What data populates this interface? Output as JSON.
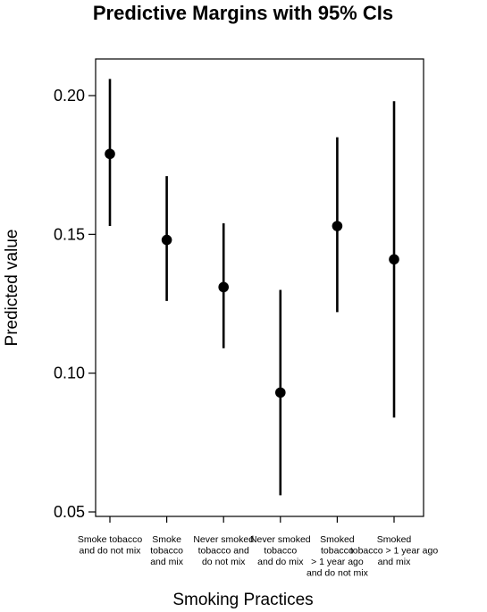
{
  "chart_data": {
    "type": "scatter",
    "title": "Predictive Margins with 95% CIs",
    "xlabel": "Smoking Practices",
    "ylabel": "Predicted value",
    "ylim": [
      0.05,
      0.215
    ],
    "yticks": [
      0.05,
      0.1,
      0.15,
      0.2
    ],
    "ytick_labels": [
      "0.05",
      "0.10",
      "0.15",
      "0.20"
    ],
    "categories": [
      [
        "Smoke tobacco",
        "and do not mix"
      ],
      [
        "Smoke",
        "tobacco",
        "and mix"
      ],
      [
        "Never smoked",
        "tobacco and",
        "do not mix"
      ],
      [
        "Never smoked",
        "tobacco",
        "and do mix"
      ],
      [
        "Smoked",
        "tobacco",
        "> 1 year ago",
        "and do not mix"
      ],
      [
        "Smoked",
        "tobacco > 1 year ago",
        "and mix"
      ]
    ],
    "values": [
      0.179,
      0.148,
      0.131,
      0.093,
      0.153,
      0.141
    ],
    "ci_lower": [
      0.153,
      0.126,
      0.109,
      0.056,
      0.122,
      0.084
    ],
    "ci_upper": [
      0.206,
      0.171,
      0.154,
      0.13,
      0.185,
      0.198
    ],
    "grid": false,
    "legend": "none",
    "colors": {
      "marker": "#000000",
      "axis": "#000000"
    }
  }
}
